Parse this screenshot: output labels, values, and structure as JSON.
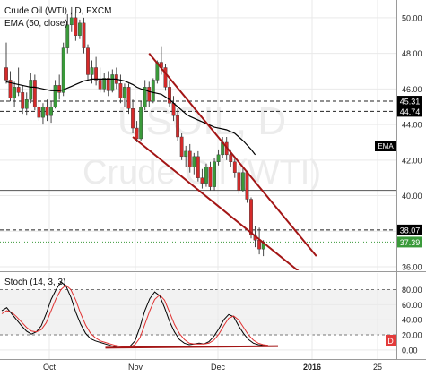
{
  "header": {
    "instrument": "Crude Oil (WTI) , D, FXCM",
    "indicator": "EMA (50, close)",
    "watermark_line1": "USOIL, D",
    "watermark_line2": "Crude Oil (WTI)"
  },
  "stoch_panel": {
    "label": "Stoch (14, 3, 3)"
  },
  "colors": {
    "up_candle": "#3a9a3a",
    "down_candle": "#d52a2a",
    "ema": "#000000",
    "trendline": "#a31515",
    "stoch_k": "#000000",
    "stoch_d": "#e03030",
    "grid": "#e9e9e9",
    "tag_red": "#e33b3b"
  },
  "chart_data": [
    {
      "type": "candlestick",
      "title": "Crude Oil (WTI) , D, FXCM",
      "x_tick_labels": [
        "Oct",
        "Nov",
        "Dec",
        "2016",
        "25"
      ],
      "y_ticks": [
        36.0,
        38.0,
        40.0,
        42.0,
        44.0,
        46.0,
        48.0,
        50.0
      ],
      "ylim": [
        35.8,
        51.0
      ],
      "grid": true,
      "candles": [
        [
          47.2,
          48.6,
          46.3,
          46.5
        ],
        [
          46.5,
          47.0,
          45.3,
          45.5
        ],
        [
          45.5,
          46.4,
          45.0,
          46.1
        ],
        [
          46.1,
          47.2,
          45.6,
          45.8
        ],
        [
          45.8,
          46.2,
          44.6,
          44.9
        ],
        [
          44.9,
          45.8,
          44.5,
          45.4
        ],
        [
          45.4,
          46.9,
          45.2,
          46.5
        ],
        [
          46.5,
          46.8,
          44.8,
          45.0
        ],
        [
          45.0,
          45.3,
          44.2,
          44.4
        ],
        [
          44.4,
          45.2,
          44.0,
          45.0
        ],
        [
          45.0,
          45.4,
          44.2,
          44.5
        ],
        [
          44.5,
          45.3,
          44.1,
          45.0
        ],
        [
          45.0,
          46.5,
          44.9,
          46.2
        ],
        [
          46.2,
          46.8,
          45.4,
          45.8
        ],
        [
          45.8,
          48.6,
          45.6,
          48.3
        ],
        [
          48.3,
          50.2,
          48.0,
          49.6
        ],
        [
          49.6,
          50.6,
          49.2,
          50.0
        ],
        [
          50.0,
          50.3,
          48.7,
          49.0
        ],
        [
          49.0,
          49.9,
          48.8,
          49.7
        ],
        [
          49.7,
          50.0,
          48.0,
          48.3
        ],
        [
          48.3,
          48.5,
          46.5,
          46.8
        ],
        [
          46.8,
          47.6,
          46.3,
          47.2
        ],
        [
          47.2,
          47.8,
          46.2,
          46.5
        ],
        [
          46.5,
          47.2,
          45.8,
          46.0
        ],
        [
          46.0,
          46.9,
          45.8,
          46.6
        ],
        [
          46.6,
          47.0,
          45.6,
          45.9
        ],
        [
          45.9,
          47.1,
          45.8,
          46.8
        ],
        [
          46.8,
          47.2,
          46.0,
          46.3
        ],
        [
          46.3,
          46.8,
          45.2,
          45.5
        ],
        [
          45.5,
          46.3,
          45.0,
          46.1
        ],
        [
          46.1,
          46.3,
          44.6,
          44.9
        ],
        [
          44.9,
          45.4,
          43.5,
          43.8
        ],
        [
          43.8,
          44.2,
          43.0,
          43.2
        ],
        [
          43.2,
          45.3,
          43.1,
          45.0
        ],
        [
          45.0,
          46.5,
          44.8,
          46.1
        ],
        [
          46.1,
          46.4,
          45.0,
          45.3
        ],
        [
          45.3,
          46.6,
          45.2,
          46.5
        ],
        [
          46.5,
          47.6,
          46.3,
          47.5
        ],
        [
          47.5,
          48.4,
          46.8,
          47.2
        ],
        [
          47.2,
          47.4,
          45.9,
          46.1
        ],
        [
          46.1,
          46.5,
          45.0,
          45.2
        ],
        [
          45.2,
          45.6,
          44.2,
          44.5
        ],
        [
          44.5,
          44.9,
          43.1,
          43.3
        ],
        [
          43.3,
          43.5,
          42.0,
          42.2
        ],
        [
          42.2,
          42.8,
          41.6,
          42.5
        ],
        [
          42.5,
          42.9,
          41.3,
          41.6
        ],
        [
          41.6,
          42.4,
          41.2,
          42.2
        ],
        [
          42.2,
          42.5,
          40.8,
          41.0
        ],
        [
          41.0,
          41.5,
          40.4,
          40.7
        ],
        [
          40.7,
          41.8,
          40.5,
          41.6
        ],
        [
          41.6,
          41.9,
          40.3,
          40.5
        ],
        [
          40.5,
          42.1,
          40.3,
          41.9
        ],
        [
          41.9,
          42.6,
          41.7,
          42.3
        ],
        [
          42.3,
          43.3,
          42.1,
          43.0
        ],
        [
          43.0,
          43.3,
          42.0,
          42.3
        ],
        [
          42.3,
          42.6,
          41.6,
          41.9
        ],
        [
          41.9,
          42.2,
          41.0,
          41.3
        ],
        [
          41.3,
          41.7,
          40.1,
          40.3
        ],
        [
          40.3,
          41.6,
          40.2,
          41.3
        ],
        [
          41.3,
          41.4,
          39.6,
          39.8
        ],
        [
          39.8,
          39.9,
          37.6,
          37.8
        ],
        [
          37.8,
          38.3,
          37.1,
          37.5
        ],
        [
          37.5,
          38.2,
          36.7,
          37.0
        ],
        [
          37.0,
          37.5,
          36.6,
          37.39
        ]
      ],
      "ema_50": [
        46.4,
        46.35,
        46.3,
        46.25,
        46.2,
        46.15,
        46.1,
        46.1,
        46.05,
        46.0,
        45.95,
        45.9,
        45.9,
        45.9,
        45.95,
        46.05,
        46.15,
        46.25,
        46.35,
        46.45,
        46.5,
        46.55,
        46.55,
        46.55,
        46.55,
        46.55,
        46.55,
        46.55,
        46.5,
        46.45,
        46.35,
        46.25,
        46.1,
        46.0,
        45.95,
        45.85,
        45.8,
        45.75,
        45.7,
        45.55,
        45.4,
        45.2,
        45.0,
        44.8,
        44.6,
        44.45,
        44.35,
        44.25,
        44.15,
        44.05,
        43.95,
        43.85,
        43.8,
        43.75,
        43.7,
        43.6,
        43.5,
        43.3,
        43.1,
        42.85,
        42.6,
        42.3
      ],
      "horizontal_levels": [
        {
          "value": 45.31,
          "label": "45.31",
          "style": "dashed"
        },
        {
          "value": 44.74,
          "label": "44.74",
          "style": "dashed"
        },
        {
          "value": 40.3,
          "label": "",
          "style": "solid"
        },
        {
          "value": 38.07,
          "label": "38.07",
          "style": "dashed"
        },
        {
          "value": 37.39,
          "label": "37.39",
          "style": "dotted"
        }
      ],
      "ema_tag": "EMA",
      "trendlines": [
        {
          "from": [
            35,
            48.0
          ],
          "to": [
            76,
            36.6
          ]
        },
        {
          "from": [
            31,
            43.3
          ],
          "to": [
            73,
            35.5
          ]
        }
      ]
    },
    {
      "type": "line",
      "title": "Stoch (14, 3, 3)",
      "y_ticks": [
        0.0,
        20.0,
        40.0,
        60.0,
        80.0
      ],
      "ylim": [
        -12,
        102
      ],
      "band": [
        20,
        80
      ],
      "series": [
        {
          "name": "%K",
          "values": [
            52,
            56,
            48,
            40,
            32,
            25,
            21,
            24,
            32,
            48,
            67,
            80,
            90,
            85,
            70,
            50,
            34,
            22,
            15,
            12,
            10,
            8,
            6,
            4,
            3,
            3,
            5,
            12,
            30,
            52,
            68,
            77,
            72,
            56,
            38,
            24,
            14,
            9,
            7,
            8,
            9,
            8,
            11,
            18,
            28,
            40,
            47,
            44,
            32,
            22,
            14,
            9,
            7,
            6,
            5
          ]
        },
        {
          "name": "%D",
          "values": [
            48,
            52,
            50,
            44,
            37,
            30,
            25,
            24,
            27,
            36,
            52,
            68,
            80,
            86,
            80,
            66,
            48,
            33,
            22,
            16,
            12,
            10,
            8,
            6,
            5,
            4,
            4,
            7,
            16,
            34,
            52,
            67,
            73,
            66,
            50,
            34,
            22,
            14,
            9,
            8,
            8,
            8,
            9,
            13,
            21,
            32,
            42,
            45,
            40,
            30,
            20,
            13,
            9,
            7,
            6
          ]
        }
      ],
      "support_line": {
        "from": [
          21,
          3
        ],
        "to": [
          56,
          5
        ]
      },
      "tag": "D"
    }
  ]
}
